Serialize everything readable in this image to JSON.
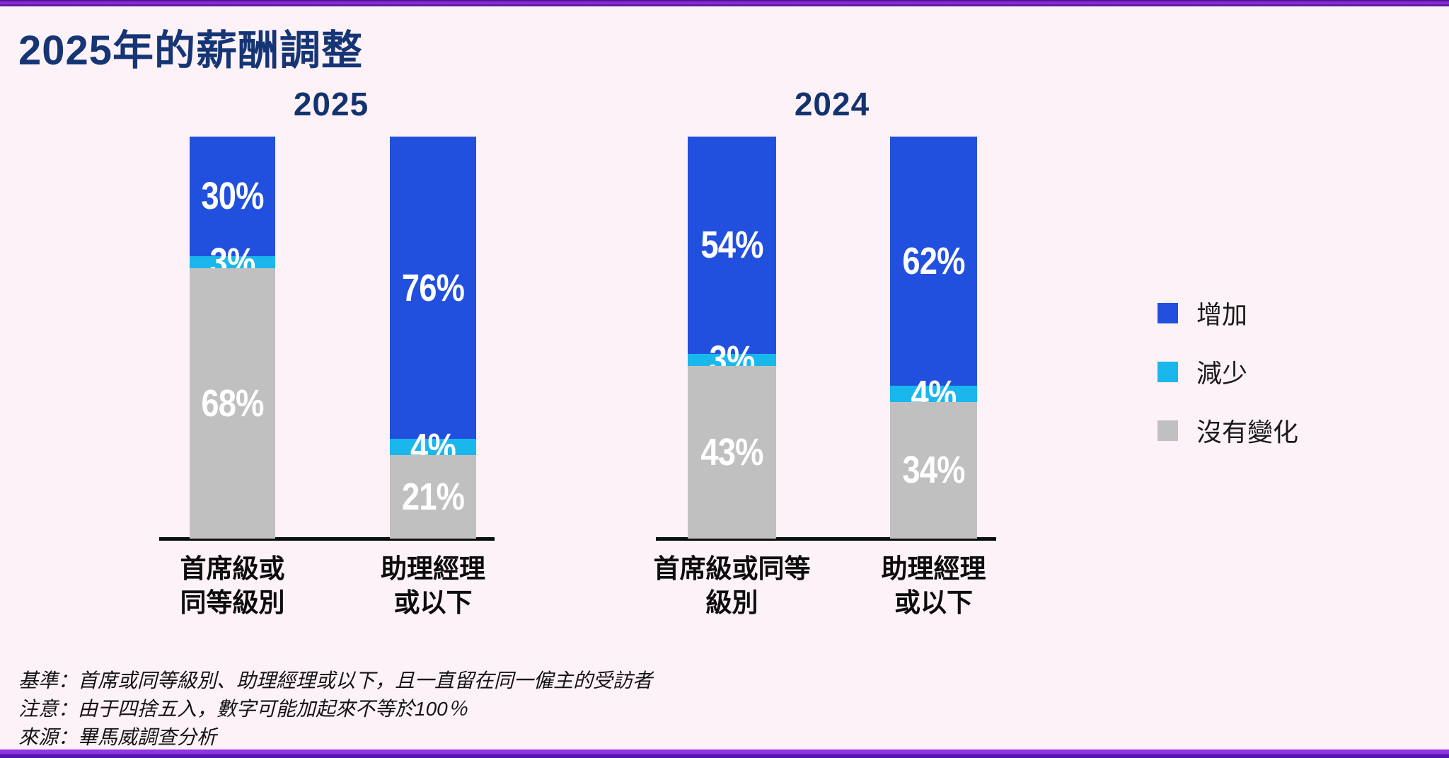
{
  "title": "2025年的薪酬調整",
  "colors": {
    "increase": "#2150df",
    "decrease": "#1ab7ec",
    "no_change": "#c1c0c1",
    "heading_navy": "#14336e",
    "title_navy": "#163575",
    "background_pink": "#fdf2f8",
    "border_purple": "#9133e0",
    "axis_black": "#0d0d0d"
  },
  "legend": [
    {
      "key": "increase",
      "label": "增加"
    },
    {
      "key": "decrease",
      "label": "減少"
    },
    {
      "key": "no_change",
      "label": "沒有變化"
    }
  ],
  "footnotes": [
    "基準：首席或同等級別、助理經理或以下，且一直留在同一僱主的受訪者",
    "注意：由于四捨五入，數字可能加起來不等於100％",
    "來源：畢馬威調查分析"
  ],
  "chart_data": {
    "type": "bar",
    "stacked": true,
    "unit": "%",
    "legend_position": "right",
    "series_order": [
      "increase",
      "decrease",
      "no_change"
    ],
    "groups": [
      {
        "heading": "2025",
        "bars": [
          {
            "category": "首席級或\n同等級別",
            "increase": 30,
            "decrease": 3,
            "no_change": 68
          },
          {
            "category": "助理經理\n或以下",
            "increase": 76,
            "decrease": 4,
            "no_change": 21
          }
        ]
      },
      {
        "heading": "2024",
        "bars": [
          {
            "category": "首席級或同等\n級別",
            "increase": 54,
            "decrease": 3,
            "no_change": 43
          },
          {
            "category": "助理經理\n或以下",
            "increase": 62,
            "decrease": 4,
            "no_change": 34
          }
        ]
      }
    ]
  }
}
